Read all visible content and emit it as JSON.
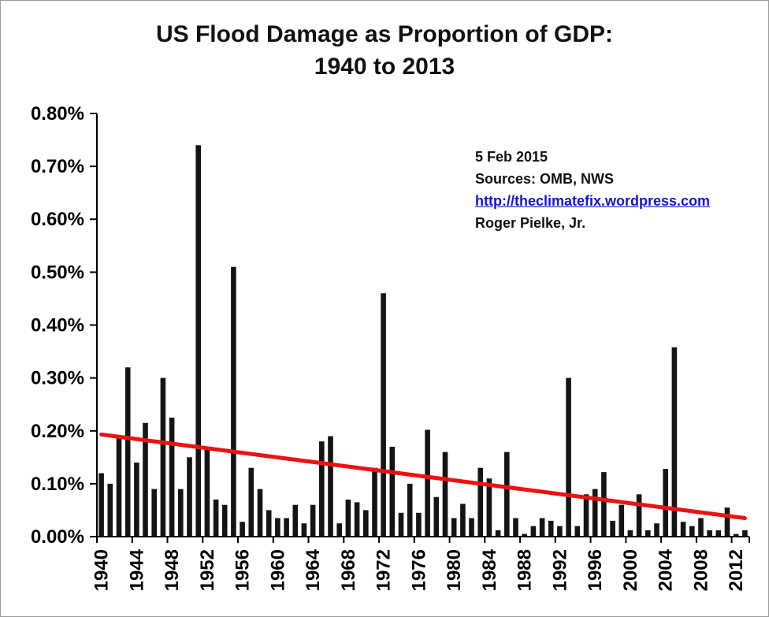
{
  "title": {
    "line1": "US Flood Damage as Proportion of GDP:",
    "line2": "1940 to 2013"
  },
  "annotation": {
    "date": "5 Feb 2015",
    "sources": "Sources: OMB, NWS",
    "url": "http://theclimatefix.wordpress.com",
    "author": "Roger Pielke, Jr.",
    "link_color": "#1414d2"
  },
  "chart_data": {
    "type": "bar",
    "title": "US Flood Damage as Proportion of GDP: 1940 to 2013",
    "xlabel": "",
    "ylabel": "",
    "grid": false,
    "legend": "none",
    "ylim": [
      0,
      0.8
    ],
    "ytick_step": 0.1,
    "ytick_labels": [
      "0.00%",
      "0.10%",
      "0.20%",
      "0.30%",
      "0.40%",
      "0.50%",
      "0.60%",
      "0.70%",
      "0.80%"
    ],
    "xtick_labels": [
      "1940",
      "1944",
      "1948",
      "1952",
      "1956",
      "1960",
      "1964",
      "1968",
      "1972",
      "1976",
      "1980",
      "1984",
      "1988",
      "1992",
      "1996",
      "2000",
      "2004",
      "2008",
      "2012"
    ],
    "bar_color": "#141414",
    "categories": [
      1940,
      1941,
      1942,
      1943,
      1944,
      1945,
      1946,
      1947,
      1948,
      1949,
      1950,
      1951,
      1952,
      1953,
      1954,
      1955,
      1956,
      1957,
      1958,
      1959,
      1960,
      1961,
      1962,
      1963,
      1964,
      1965,
      1966,
      1967,
      1968,
      1969,
      1970,
      1971,
      1972,
      1973,
      1974,
      1975,
      1976,
      1977,
      1978,
      1979,
      1980,
      1981,
      1982,
      1983,
      1984,
      1985,
      1986,
      1987,
      1988,
      1989,
      1990,
      1991,
      1992,
      1993,
      1994,
      1995,
      1996,
      1997,
      1998,
      1999,
      2000,
      2001,
      2002,
      2003,
      2004,
      2005,
      2006,
      2007,
      2008,
      2009,
      2010,
      2011,
      2012,
      2013
    ],
    "values": [
      0.12,
      0.1,
      0.19,
      0.32,
      0.14,
      0.215,
      0.09,
      0.3,
      0.225,
      0.09,
      0.15,
      0.74,
      0.165,
      0.07,
      0.06,
      0.51,
      0.028,
      0.13,
      0.09,
      0.05,
      0.035,
      0.035,
      0.06,
      0.025,
      0.06,
      0.18,
      0.19,
      0.025,
      0.07,
      0.065,
      0.05,
      0.13,
      0.46,
      0.17,
      0.045,
      0.1,
      0.045,
      0.202,
      0.075,
      0.16,
      0.035,
      0.062,
      0.035,
      0.13,
      0.11,
      0.012,
      0.16,
      0.035,
      0.005,
      0.02,
      0.035,
      0.03,
      0.02,
      0.3,
      0.02,
      0.08,
      0.09,
      0.122,
      0.03,
      0.06,
      0.012,
      0.08,
      0.012,
      0.025,
      0.128,
      0.358,
      0.028,
      0.02,
      0.035,
      0.012,
      0.012,
      0.055,
      0.005,
      0.012
    ],
    "trend": {
      "color": "#ee1111",
      "start": {
        "x": 1940,
        "y": 0.193
      },
      "end": {
        "x": 2013,
        "y": 0.035
      }
    }
  }
}
